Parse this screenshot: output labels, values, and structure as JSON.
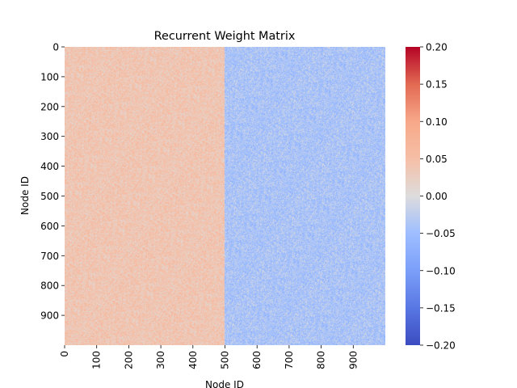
{
  "chart_data": {
    "type": "heatmap",
    "title": "Recurrent Weight Matrix",
    "xlabel": "Node ID",
    "ylabel": "Node ID",
    "x_range": [
      0,
      1000
    ],
    "y_range": [
      0,
      1000
    ],
    "x_ticks": [
      0,
      100,
      200,
      300,
      400,
      500,
      600,
      700,
      800,
      900
    ],
    "y_ticks": [
      0,
      100,
      200,
      300,
      400,
      500,
      600,
      700,
      800,
      900
    ],
    "colorbar": {
      "colormap": "coolwarm",
      "vmin": -0.2,
      "vmax": 0.2,
      "ticks": [
        0.2,
        0.15,
        0.1,
        0.05,
        0.0,
        -0.05,
        -0.1,
        -0.15,
        -0.2
      ],
      "tick_labels": [
        "0.20",
        "0.15",
        "0.10",
        "0.05",
        "0.00",
        "−0.05",
        "−0.10",
        "−0.15",
        "−0.20"
      ]
    },
    "blocks": [
      {
        "columns": [
          0,
          500
        ],
        "rows": [
          0,
          1000
        ],
        "mean_weight": 0.04,
        "spread": 0.03
      },
      {
        "columns": [
          500,
          1000
        ],
        "rows": [
          0,
          1000
        ],
        "mean_weight": -0.04,
        "spread": 0.03
      }
    ],
    "grid": false,
    "legend": "colorbar-right"
  }
}
